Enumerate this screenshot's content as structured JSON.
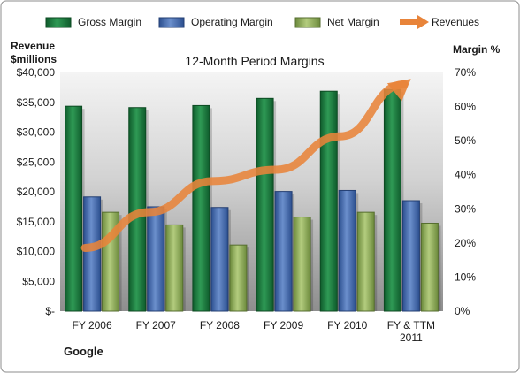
{
  "chart_data": {
    "type": "bar",
    "title": "12-Month Period Margins",
    "left_axis_title": [
      "Revenue",
      "$millions"
    ],
    "right_axis_title": "Margin %",
    "footer_label": "Google",
    "categories": [
      "FY 2006",
      "FY 2007",
      "FY 2008",
      "FY 2009",
      "FY 2010",
      "FY & TTM 2011"
    ],
    "category_label_lines": [
      [
        "FY 2006"
      ],
      [
        "FY 2007"
      ],
      [
        "FY 2008"
      ],
      [
        "FY 2009"
      ],
      [
        "FY 2010"
      ],
      [
        "FY & TTM",
        "2011"
      ]
    ],
    "y_left": {
      "min": 0,
      "max": 40000,
      "step": 5000,
      "ticks": [
        "$-",
        "$5,000",
        "$10,000",
        "$15,000",
        "$20,000",
        "$25,000",
        "$30,000",
        "$35,000",
        "$40,000"
      ]
    },
    "y_right": {
      "min": 0,
      "max": 70,
      "step": 10,
      "ticks": [
        "0%",
        "10%",
        "20%",
        "30%",
        "40%",
        "50%",
        "60%",
        "70%"
      ]
    },
    "series": [
      {
        "name": "Gross Margin",
        "axis": "right",
        "color": "#1e7a40",
        "values": [
          60.1,
          59.7,
          60.3,
          62.4,
          64.5,
          65.0
        ]
      },
      {
        "name": "Operating Margin",
        "axis": "right",
        "color": "#4a6fb0",
        "values": [
          33.5,
          30.6,
          30.4,
          35.1,
          35.4,
          32.4
        ]
      },
      {
        "name": "Net Margin",
        "axis": "right",
        "color": "#8fae5a",
        "values": [
          29.0,
          25.3,
          19.4,
          27.6,
          29.0,
          25.8
        ]
      },
      {
        "name": "Revenues",
        "axis": "left",
        "type": "line",
        "color": "#e8843a",
        "values": [
          10600,
          16600,
          21800,
          23700,
          29300,
          38000
        ]
      }
    ],
    "legend_position": "top",
    "grid": false
  }
}
